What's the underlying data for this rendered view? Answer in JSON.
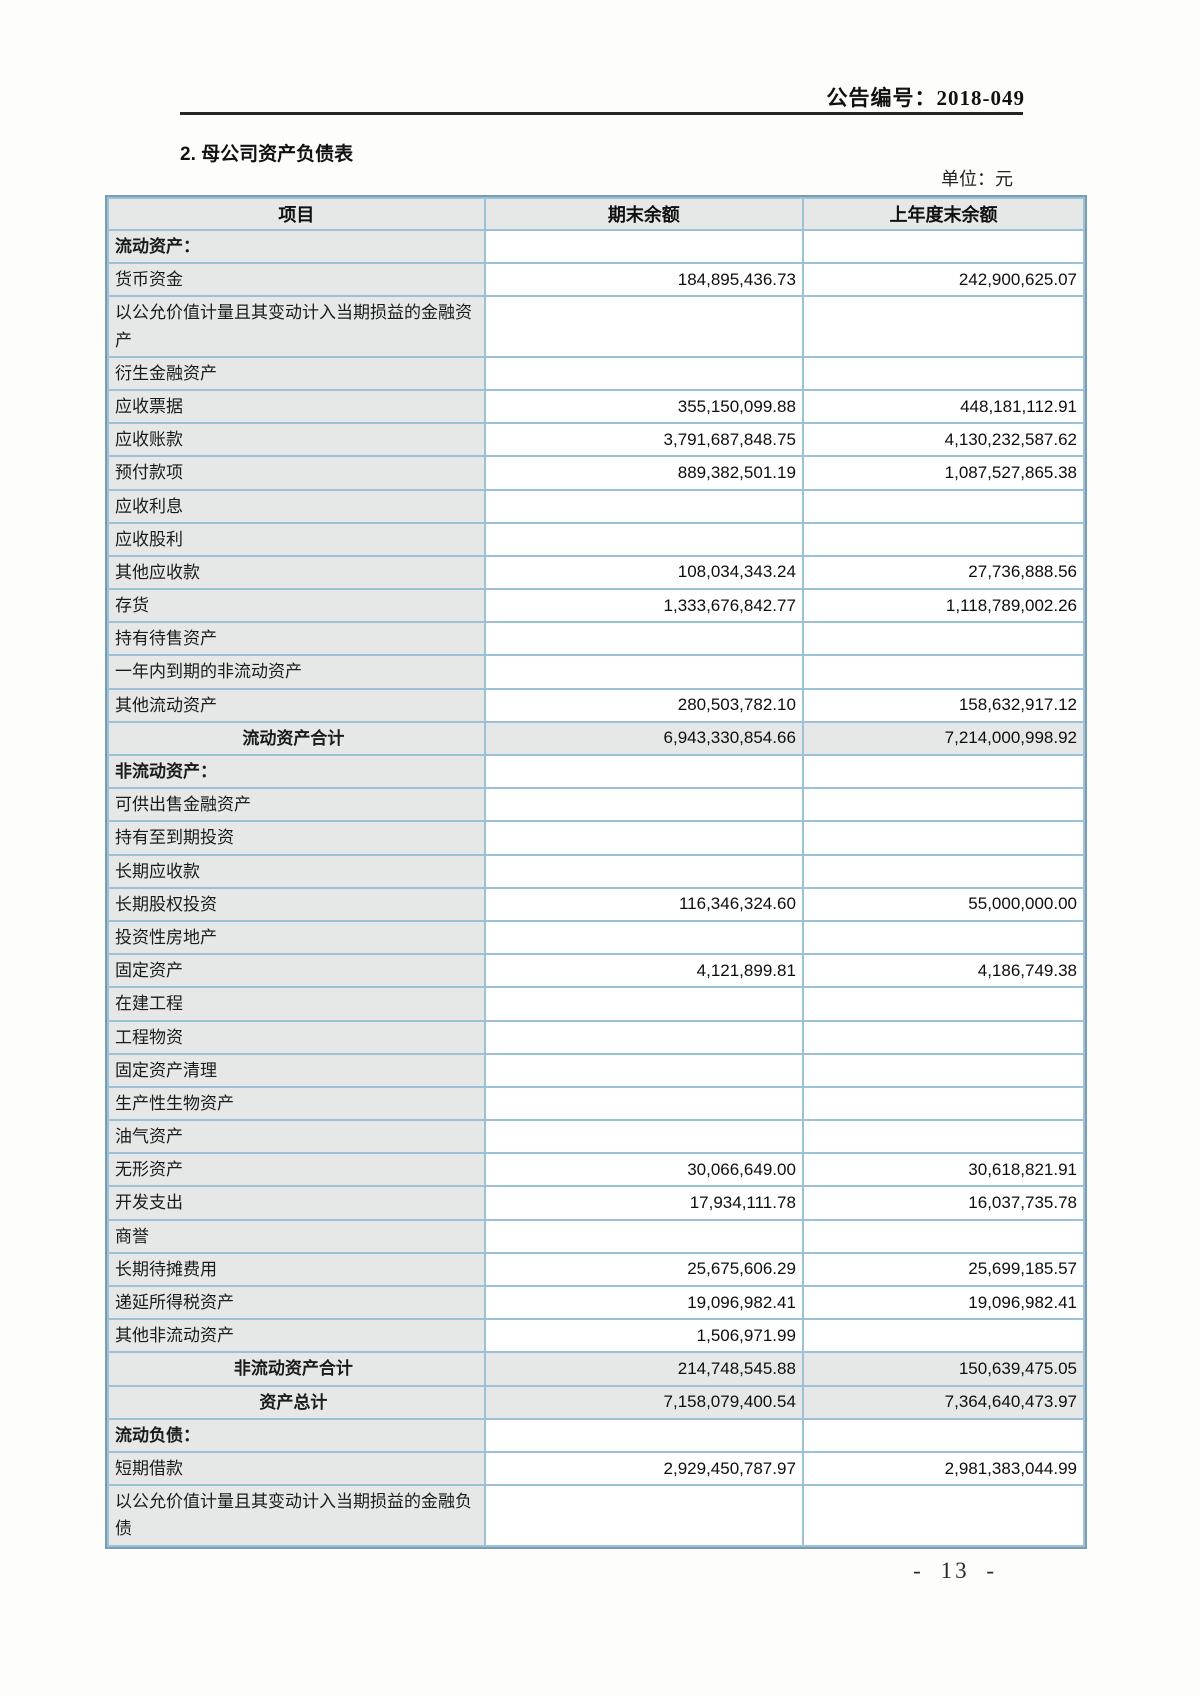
{
  "page": {
    "announcement_no": "公告编号：2018-049",
    "section_title": "2. 母公司资产负债表",
    "unit_label": "单位：元",
    "page_number": "- 13 -"
  },
  "colors": {
    "shaded_cell": "#e6e7e7",
    "grid_line": "#9cc0d5",
    "outer_border": "#7a9cb4",
    "rule_line": "#262626"
  },
  "table": {
    "headers": [
      "项目",
      "期末余额",
      "上年度末余额"
    ],
    "rows": [
      {
        "item": "流动资产：",
        "current": "",
        "prior": "",
        "style": "section"
      },
      {
        "item": "货币资金",
        "current": "184,895,436.73",
        "prior": "242,900,625.07",
        "style": "item"
      },
      {
        "item": "以公允价值计量且其变动计入当期损益的金融资产",
        "current": "",
        "prior": "",
        "style": "item",
        "tall": true
      },
      {
        "item": "衍生金融资产",
        "current": "",
        "prior": "",
        "style": "item"
      },
      {
        "item": "应收票据",
        "current": "355,150,099.88",
        "prior": "448,181,112.91",
        "style": "item"
      },
      {
        "item": "应收账款",
        "current": "3,791,687,848.75",
        "prior": "4,130,232,587.62",
        "style": "item"
      },
      {
        "item": "预付款项",
        "current": "889,382,501.19",
        "prior": "1,087,527,865.38",
        "style": "item"
      },
      {
        "item": "应收利息",
        "current": "",
        "prior": "",
        "style": "item"
      },
      {
        "item": "应收股利",
        "current": "",
        "prior": "",
        "style": "item"
      },
      {
        "item": "其他应收款",
        "current": "108,034,343.24",
        "prior": "27,736,888.56",
        "style": "item"
      },
      {
        "item": "存货",
        "current": "1,333,676,842.77",
        "prior": "1,118,789,002.26",
        "style": "item"
      },
      {
        "item": "持有待售资产",
        "current": "",
        "prior": "",
        "style": "item"
      },
      {
        "item": "一年内到期的非流动资产",
        "current": "",
        "prior": "",
        "style": "item"
      },
      {
        "item": "其他流动资产",
        "current": "280,503,782.10",
        "prior": "158,632,917.12",
        "style": "item"
      },
      {
        "item": "流动资产合计",
        "current": "6,943,330,854.66",
        "prior": "7,214,000,998.92",
        "style": "total"
      },
      {
        "item": "非流动资产：",
        "current": "",
        "prior": "",
        "style": "section"
      },
      {
        "item": "可供出售金融资产",
        "current": "",
        "prior": "",
        "style": "item"
      },
      {
        "item": "持有至到期投资",
        "current": "",
        "prior": "",
        "style": "item"
      },
      {
        "item": "长期应收款",
        "current": "",
        "prior": "",
        "style": "item"
      },
      {
        "item": "长期股权投资",
        "current": "116,346,324.60",
        "prior": "55,000,000.00",
        "style": "item"
      },
      {
        "item": "投资性房地产",
        "current": "",
        "prior": "",
        "style": "item"
      },
      {
        "item": "固定资产",
        "current": "4,121,899.81",
        "prior": "4,186,749.38",
        "style": "item"
      },
      {
        "item": "在建工程",
        "current": "",
        "prior": "",
        "style": "item"
      },
      {
        "item": "工程物资",
        "current": "",
        "prior": "",
        "style": "item"
      },
      {
        "item": "固定资产清理",
        "current": "",
        "prior": "",
        "style": "item"
      },
      {
        "item": "生产性生物资产",
        "current": "",
        "prior": "",
        "style": "item"
      },
      {
        "item": "油气资产",
        "current": "",
        "prior": "",
        "style": "item"
      },
      {
        "item": "无形资产",
        "current": "30,066,649.00",
        "prior": "30,618,821.91",
        "style": "item"
      },
      {
        "item": "开发支出",
        "current": "17,934,111.78",
        "prior": "16,037,735.78",
        "style": "item"
      },
      {
        "item": "商誉",
        "current": "",
        "prior": "",
        "style": "item"
      },
      {
        "item": "长期待摊费用",
        "current": "25,675,606.29",
        "prior": "25,699,185.57",
        "style": "item"
      },
      {
        "item": "递延所得税资产",
        "current": "19,096,982.41",
        "prior": "19,096,982.41",
        "style": "item"
      },
      {
        "item": "其他非流动资产",
        "current": "1,506,971.99",
        "prior": "",
        "style": "item"
      },
      {
        "item": "非流动资产合计",
        "current": "214,748,545.88",
        "prior": "150,639,475.05",
        "style": "total"
      },
      {
        "item": "资产总计",
        "current": "7,158,079,400.54",
        "prior": "7,364,640,473.97",
        "style": "total"
      },
      {
        "item": "流动负债：",
        "current": "",
        "prior": "",
        "style": "section"
      },
      {
        "item": "短期借款",
        "current": "2,929,450,787.97",
        "prior": "2,981,383,044.99",
        "style": "item"
      },
      {
        "item": "以公允价值计量且其变动计入当期损益的金融负债",
        "current": "",
        "prior": "",
        "style": "item",
        "tall": true
      }
    ]
  }
}
